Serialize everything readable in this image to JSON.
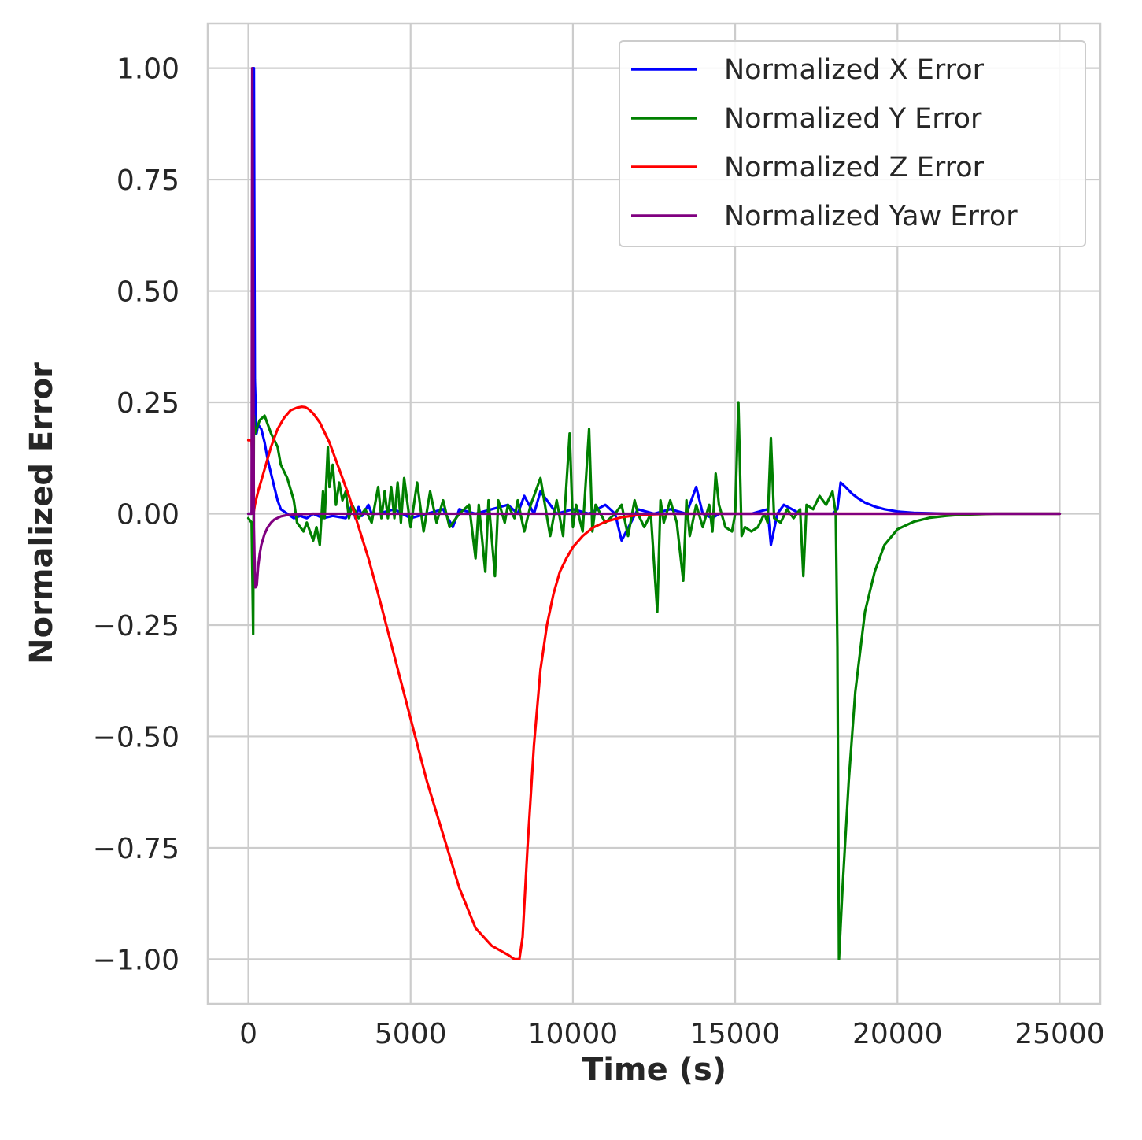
{
  "chart_data": {
    "type": "line",
    "title": "",
    "xlabel": "Time (s)",
    "ylabel": "Normalized Error",
    "xlim": [
      -1250,
      26250
    ],
    "ylim": [
      -1.1,
      1.1
    ],
    "xticks": [
      0,
      5000,
      10000,
      15000,
      20000,
      25000
    ],
    "xtick_labels": [
      "0",
      "5000",
      "10000",
      "15000",
      "20000",
      "25000"
    ],
    "yticks": [
      1.0,
      0.75,
      0.5,
      0.25,
      0.0,
      -0.25,
      -0.5,
      -0.75,
      -1.0
    ],
    "ytick_labels": [
      "1.00",
      "0.75",
      "0.50",
      "0.25",
      "0.00",
      "−0.25",
      "−0.50",
      "−0.75",
      "−1.00"
    ],
    "grid": true,
    "legend_position": "top-right",
    "series": [
      {
        "name": "Normalized X Error",
        "color": "#0000ff",
        "x": [
          0,
          100,
          150,
          170,
          200,
          250,
          300,
          400,
          500,
          600,
          700,
          800,
          900,
          1000,
          1200,
          1400,
          1600,
          1800,
          2000,
          2300,
          2600,
          3000,
          3200,
          3300,
          3400,
          3500,
          3700,
          3800,
          4000,
          4500,
          5000,
          5500,
          6000,
          6300,
          6500,
          7000,
          7500,
          8000,
          8300,
          8500,
          8800,
          9000,
          9500,
          10000,
          10500,
          11000,
          11300,
          11500,
          12000,
          12500,
          13000,
          13500,
          13800,
          14000,
          14300,
          14500,
          15000,
          15500,
          16000,
          16100,
          16300,
          16500,
          17000,
          17500,
          18000,
          18150,
          18250,
          18400,
          18600,
          18800,
          19000,
          19300,
          19600,
          20000,
          20500,
          21000,
          21500,
          22000,
          23000,
          24000,
          25000
        ],
        "y": [
          0.0,
          0.0,
          0.05,
          1.0,
          0.3,
          0.18,
          0.2,
          0.19,
          0.16,
          0.12,
          0.09,
          0.06,
          0.03,
          0.01,
          0.0,
          -0.01,
          -0.005,
          -0.01,
          0.0,
          -0.01,
          -0.005,
          -0.01,
          0.02,
          -0.01,
          0.015,
          -0.005,
          0.02,
          0.0,
          0.0,
          0.01,
          -0.01,
          0.0,
          0.01,
          -0.03,
          0.01,
          0.0,
          0.01,
          0.02,
          0.0,
          0.04,
          0.0,
          0.05,
          0.0,
          0.01,
          0.0,
          0.02,
          0.0,
          -0.06,
          0.01,
          0.0,
          0.01,
          0.0,
          0.06,
          0.0,
          -0.01,
          0.0,
          0.0,
          0.0,
          0.01,
          -0.07,
          0.0,
          0.02,
          0.0,
          0.0,
          0.0,
          0.01,
          0.07,
          0.06,
          0.045,
          0.034,
          0.025,
          0.016,
          0.01,
          0.005,
          0.002,
          0.001,
          0.0,
          0.0,
          0.0,
          0.0,
          0.0
        ]
      },
      {
        "name": "Normalized Y Error",
        "color": "#008000",
        "x": [
          0,
          100,
          150,
          170,
          200,
          250,
          350,
          500,
          600,
          700,
          900,
          1000,
          1200,
          1400,
          1500,
          1700,
          1800,
          2000,
          2100,
          2200,
          2300,
          2350,
          2450,
          2500,
          2600,
          2700,
          2800,
          2900,
          3000,
          3100,
          3200,
          3400,
          3600,
          3800,
          4000,
          4100,
          4200,
          4300,
          4400,
          4500,
          4600,
          4700,
          4800,
          5000,
          5200,
          5400,
          5600,
          5800,
          6000,
          6200,
          6500,
          6800,
          7000,
          7100,
          7300,
          7400,
          7600,
          7700,
          7900,
          8000,
          8200,
          8300,
          8500,
          8700,
          9000,
          9300,
          9500,
          9700,
          9900,
          10000,
          10100,
          10300,
          10500,
          10600,
          10700,
          11000,
          11300,
          11500,
          11700,
          11900,
          12000,
          12200,
          12400,
          12600,
          12700,
          12800,
          13000,
          13200,
          13400,
          13500,
          13600,
          13800,
          14000,
          14200,
          14300,
          14400,
          14500,
          14700,
          14900,
          15000,
          15100,
          15200,
          15300,
          15500,
          15700,
          15900,
          16000,
          16100,
          16200,
          16400,
          16600,
          16800,
          17000,
          17100,
          17200,
          17400,
          17600,
          17800,
          18000,
          18100,
          18150,
          18200,
          18300,
          18500,
          18700,
          19000,
          19300,
          19600,
          20000,
          20500,
          21000,
          21500,
          22000,
          22500,
          23000,
          24000,
          25000
        ],
        "y": [
          -0.01,
          -0.02,
          -0.27,
          0.22,
          0.18,
          0.19,
          0.21,
          0.22,
          0.2,
          0.18,
          0.15,
          0.11,
          0.08,
          0.03,
          -0.02,
          -0.04,
          -0.02,
          -0.06,
          -0.03,
          -0.07,
          0.05,
          -0.01,
          0.15,
          0.06,
          0.11,
          0.02,
          0.07,
          0.03,
          0.05,
          -0.01,
          0.02,
          -0.01,
          0.01,
          -0.02,
          0.06,
          -0.01,
          0.05,
          -0.01,
          0.06,
          -0.01,
          0.07,
          -0.02,
          0.08,
          -0.03,
          0.07,
          -0.04,
          0.05,
          -0.02,
          0.03,
          -0.03,
          0.0,
          0.02,
          -0.1,
          0.02,
          -0.13,
          0.03,
          -0.14,
          0.03,
          -0.02,
          0.02,
          -0.01,
          0.03,
          -0.04,
          0.02,
          0.08,
          -0.05,
          0.03,
          -0.05,
          0.18,
          -0.03,
          0.02,
          -0.04,
          0.19,
          -0.04,
          0.02,
          -0.02,
          0.0,
          0.02,
          -0.05,
          0.03,
          0.0,
          -0.03,
          0.0,
          -0.22,
          0.03,
          -0.02,
          0.03,
          -0.02,
          -0.15,
          0.03,
          -0.05,
          0.02,
          -0.03,
          0.02,
          -0.04,
          0.09,
          0.02,
          -0.03,
          -0.04,
          0.0,
          0.25,
          -0.05,
          -0.03,
          -0.04,
          -0.03,
          0.0,
          -0.02,
          0.17,
          -0.01,
          -0.02,
          0.01,
          -0.01,
          0.01,
          -0.14,
          0.02,
          0.01,
          0.04,
          0.02,
          0.05,
          0.0,
          -0.3,
          -1.0,
          -0.85,
          -0.6,
          -0.4,
          -0.22,
          -0.13,
          -0.07,
          -0.035,
          -0.018,
          -0.009,
          -0.005,
          -0.002,
          -0.001,
          0.0,
          0.0,
          0.0
        ]
      },
      {
        "name": "Normalized Z Error",
        "color": "#ff0000",
        "x": [
          0,
          100,
          160,
          200,
          300,
          500,
          700,
          900,
          1100,
          1300,
          1500,
          1650,
          1750,
          1850,
          2000,
          2200,
          2500,
          2800,
          3100,
          3400,
          3700,
          4000,
          4500,
          5000,
          5500,
          6000,
          6500,
          7000,
          7500,
          8000,
          8200,
          8350,
          8450,
          8600,
          8800,
          9000,
          9200,
          9400,
          9600,
          9800,
          10000,
          10300,
          10600,
          11000,
          11500,
          12000,
          12500,
          13000,
          14000,
          15000,
          16000,
          17000,
          18000,
          20000,
          22000,
          25000
        ],
        "y": [
          0.165,
          0.165,
          0.0,
          0.02,
          0.05,
          0.1,
          0.15,
          0.19,
          0.215,
          0.232,
          0.238,
          0.24,
          0.239,
          0.235,
          0.225,
          0.205,
          0.16,
          0.1,
          0.04,
          -0.03,
          -0.1,
          -0.18,
          -0.32,
          -0.46,
          -0.6,
          -0.72,
          -0.84,
          -0.93,
          -0.97,
          -0.99,
          -1.0,
          -1.0,
          -0.95,
          -0.75,
          -0.52,
          -0.35,
          -0.25,
          -0.18,
          -0.13,
          -0.1,
          -0.075,
          -0.05,
          -0.032,
          -0.018,
          -0.008,
          -0.003,
          -0.001,
          0.0,
          0.0,
          0.0,
          0.0,
          0.0,
          0.0,
          0.0,
          0.0,
          0.0
        ]
      },
      {
        "name": "Normalized Yaw Error",
        "color": "#800080",
        "x": [
          0,
          100,
          120,
          150,
          170,
          190,
          220,
          260,
          300,
          350,
          400,
          500,
          600,
          700,
          800,
          1000,
          1200,
          1500,
          2000,
          3000,
          5000,
          8000,
          12000,
          16000,
          20000,
          25000
        ],
        "y": [
          0.0,
          0.0,
          1.0,
          0.5,
          -0.03,
          -0.1,
          -0.165,
          -0.16,
          -0.12,
          -0.09,
          -0.07,
          -0.045,
          -0.03,
          -0.02,
          -0.013,
          -0.006,
          -0.003,
          -0.001,
          0.0,
          0.0,
          0.0,
          0.0,
          0.0,
          0.0,
          0.0,
          0.0
        ]
      }
    ]
  }
}
